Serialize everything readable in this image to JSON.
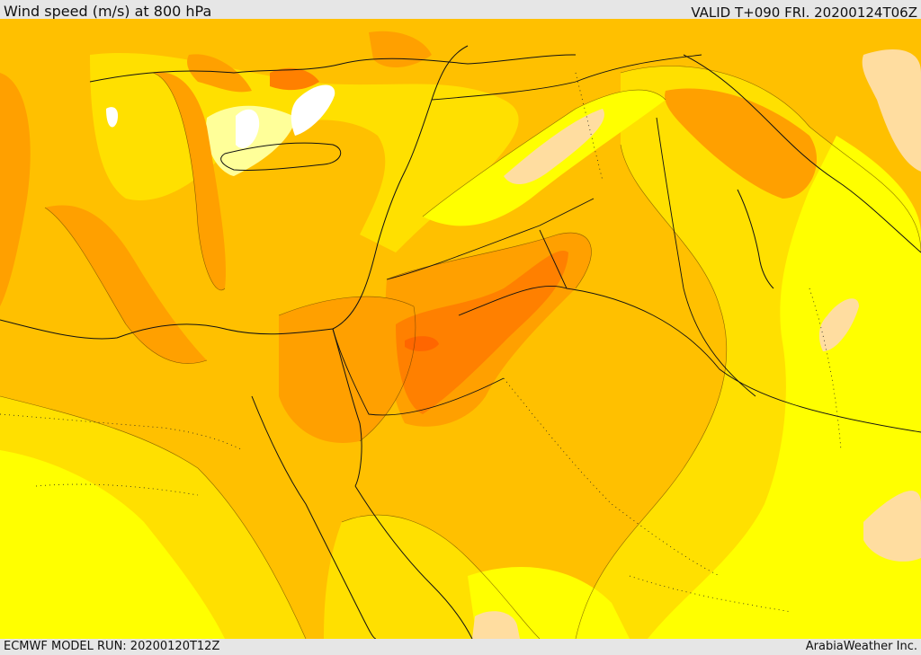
{
  "header": {
    "title": "Wind speed (m/s) at 800 hPa",
    "valid": "VALID T+090 FRI. 20200124T06Z"
  },
  "footer": {
    "model_run": "ECMWF MODEL RUN: 20200120T12Z",
    "credit": "ArabiaWeather Inc."
  },
  "map": {
    "colors": {
      "white": "#ffffff",
      "pale_yellow": "#ffff99",
      "yellow": "#ffff00",
      "gold": "#ffe000",
      "amber": "#ffc000",
      "orange": "#ffa000",
      "dark_orange": "#ff8000",
      "deep_orange": "#ff6600",
      "peach": "#ffdda0",
      "coast": "#111111",
      "contour": "#5a3a00"
    }
  }
}
